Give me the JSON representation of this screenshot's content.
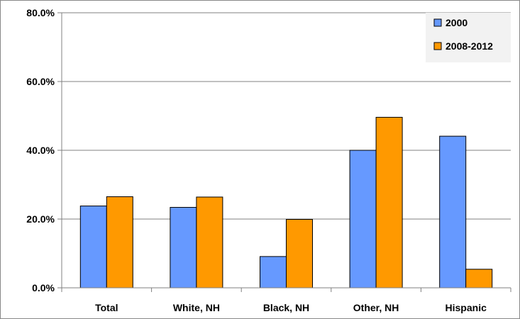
{
  "chart_data": {
    "type": "bar",
    "categories": [
      "Total",
      "White, NH",
      "Black, NH",
      "Other, NH",
      "Hispanic"
    ],
    "series": [
      {
        "name": "2000",
        "values": [
          23.8,
          23.4,
          9.1,
          40.0,
          44.1
        ],
        "color": "#6699ff"
      },
      {
        "name": "2008-2012",
        "values": [
          26.5,
          26.4,
          19.9,
          49.6,
          5.4
        ],
        "color": "#ff9900"
      }
    ],
    "y_ticks": [
      "0.0%",
      "20.0%",
      "40.0%",
      "60.0%",
      "80.0%"
    ],
    "ylim": [
      0,
      80
    ],
    "grid": true,
    "legend_position": "top-right"
  }
}
